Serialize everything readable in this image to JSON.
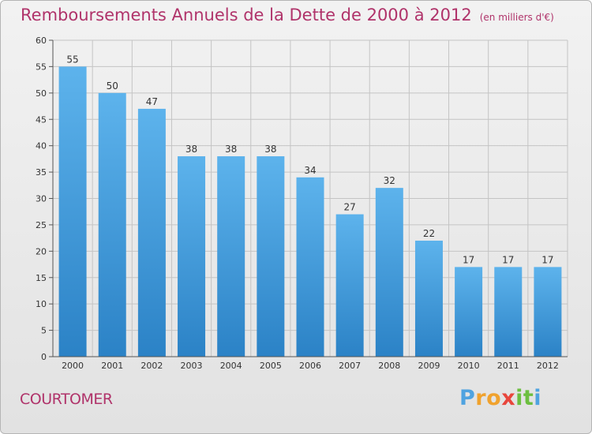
{
  "title": "Remboursements Annuels de la Dette de 2000 à 2012",
  "unit": "(en milliers d'€)",
  "place": "COURTOMER",
  "logo": {
    "letters": [
      "P",
      "r",
      "o",
      "x",
      "i",
      "t",
      "i"
    ],
    "colors": [
      "#4fa3e0",
      "#f0a22e",
      "#f0a22e",
      "#e8463c",
      "#6cbf3f",
      "#6cbf3f",
      "#4fa3e0"
    ]
  },
  "colors": {
    "title": "#b0336a",
    "bar_top": "#5db3ec",
    "bar_bottom": "#2b82c6"
  },
  "chart_data": {
    "type": "bar",
    "categories": [
      "2000",
      "2001",
      "2002",
      "2003",
      "2004",
      "2005",
      "2006",
      "2007",
      "2008",
      "2009",
      "2010",
      "2011",
      "2012"
    ],
    "values": [
      55,
      50,
      47,
      38,
      38,
      38,
      34,
      27,
      32,
      22,
      17,
      17,
      17
    ],
    "ylim": [
      0,
      60
    ],
    "yticks": [
      0,
      5,
      10,
      15,
      20,
      25,
      30,
      35,
      40,
      45,
      50,
      55,
      60
    ],
    "grid": true,
    "data_labels": true
  }
}
